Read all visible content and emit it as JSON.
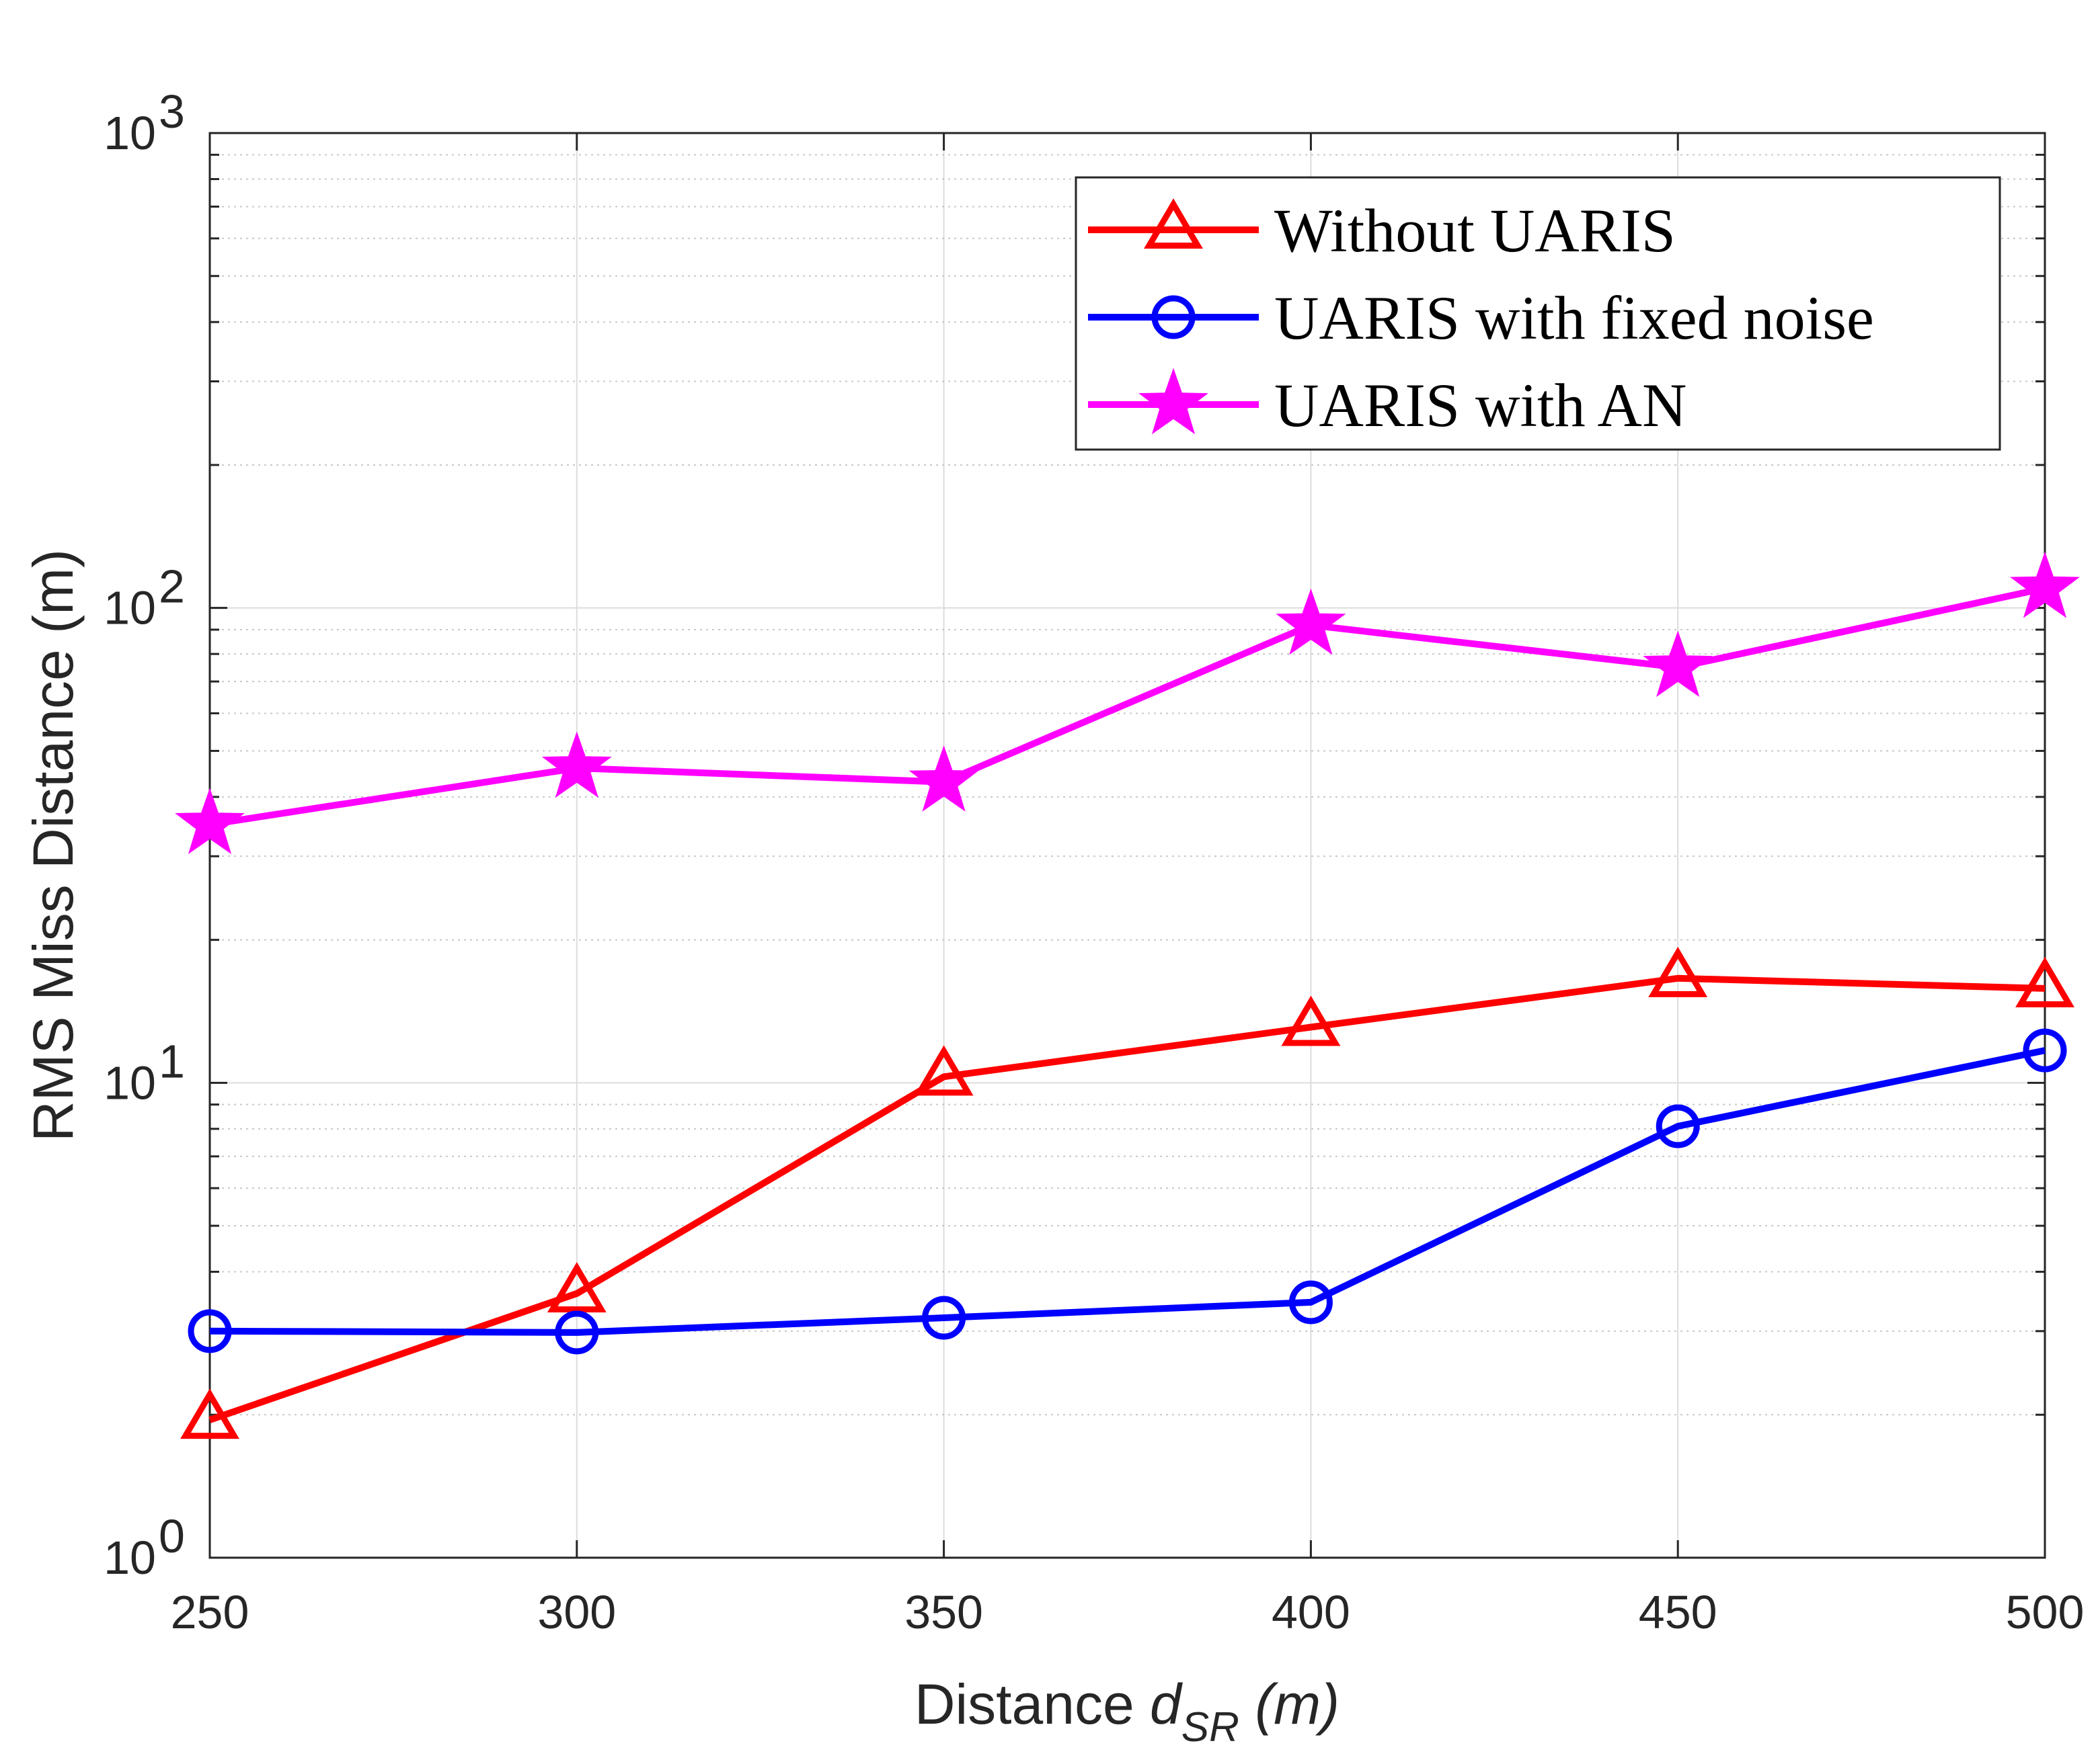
{
  "chart_data": {
    "type": "line",
    "xlabel": {
      "main": "Distance ",
      "var": "d",
      "sub": "SR",
      "unit": " (m)"
    },
    "ylabel": "RMS Miss Distance (m)",
    "yscale": "log",
    "xlim": [
      250,
      500
    ],
    "ylim": [
      1,
      1000
    ],
    "grid": true,
    "legend_position": "top-right",
    "x": [
      250,
      300,
      350,
      400,
      450,
      500
    ],
    "x_ticks": [
      "250",
      "300",
      "350",
      "400",
      "450",
      "500"
    ],
    "y_ticks": [
      {
        "value": 1,
        "base": "10",
        "exp": "0"
      },
      {
        "value": 10,
        "base": "10",
        "exp": "1"
      },
      {
        "value": 100,
        "base": "10",
        "exp": "2"
      },
      {
        "value": 1000,
        "base": "10",
        "exp": "3"
      }
    ],
    "series": [
      {
        "name": "Without UARIS",
        "color": "#ff0000",
        "marker": "triangle",
        "values": [
          1.95,
          3.6,
          10.3,
          13.1,
          16.6,
          15.8
        ]
      },
      {
        "name": "UARIS with fixed noise",
        "color": "#0000ff",
        "marker": "circle",
        "values": [
          3.0,
          2.98,
          3.2,
          3.45,
          8.1,
          11.7
        ]
      },
      {
        "name": "UARIS with AN",
        "color": "#ff00ff",
        "marker": "star",
        "values": [
          35,
          46,
          43,
          92,
          75,
          110
        ]
      }
    ]
  }
}
